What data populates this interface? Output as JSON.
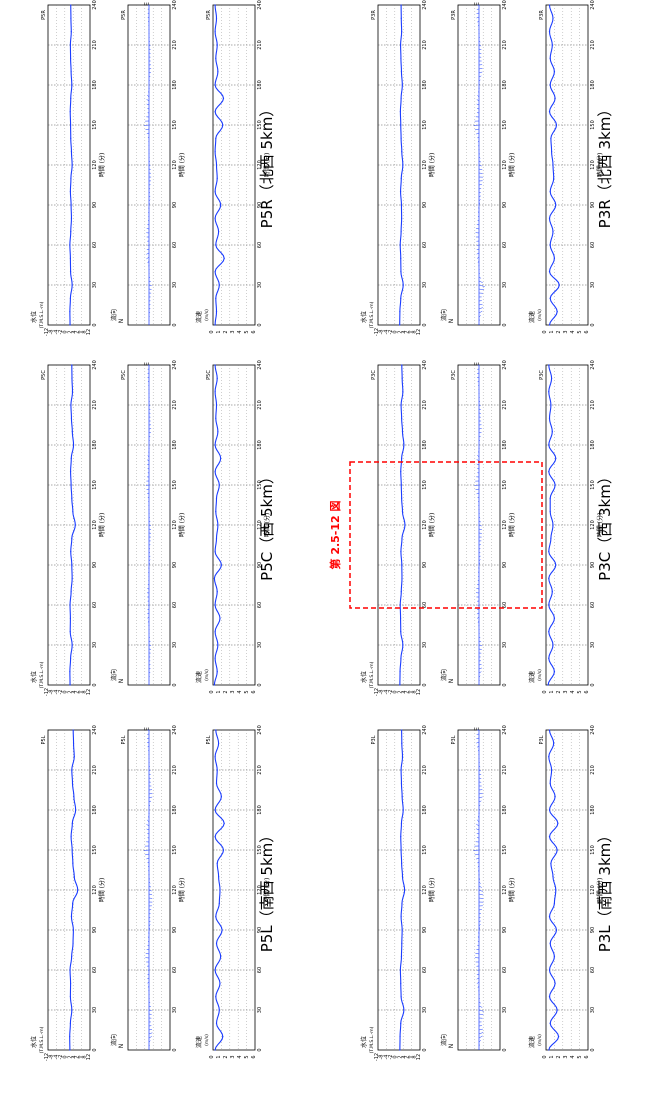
{
  "page": {
    "background": "#ffffff",
    "series_color": "#1a3cff",
    "highlight_color": "#ff0000"
  },
  "common": {
    "x_label": "時間 (分)",
    "x_ticks": [
      "0",
      "30",
      "60",
      "90",
      "120",
      "150",
      "180",
      "210",
      "240"
    ],
    "level_label": "水位",
    "level_unit": "(T.M.S.L.-m)",
    "level_ticks": [
      "12",
      "8",
      "6",
      "4",
      "2",
      "0",
      "-2",
      "-4",
      "-8",
      "-12"
    ],
    "vector_label": "流向",
    "vector_north": "N",
    "vector_east": "E",
    "speed_label": "流速",
    "speed_unit": "(m/s)",
    "speed_ticks": [
      "6",
      "5",
      "4",
      "3",
      "2",
      "1",
      "0"
    ]
  },
  "highlight": {
    "label": "第 2.5-12 図"
  },
  "groups": [
    {
      "key": "P5L",
      "title": "P5L（南西 5km）",
      "point": "P5L"
    },
    {
      "key": "P5C",
      "title": "P5C（西 5km）",
      "point": "P5C"
    },
    {
      "key": "P5R",
      "title": "P5R（北西 5km）",
      "point": "P5R"
    },
    {
      "key": "P3L",
      "title": "P3L（南西 3km）",
      "point": "P3L"
    },
    {
      "key": "P3C",
      "title": "P3C（西 3km）",
      "point": "P3C"
    },
    {
      "key": "P3R",
      "title": "P3R（北西 3km）",
      "point": "P3R"
    }
  ],
  "chart_data": [
    {
      "type": "line",
      "point": "P5L",
      "panel": "水位",
      "x_range": [
        0,
        240
      ],
      "ylim": [
        -12,
        12
      ],
      "series": [
        {
          "x": [
            0,
            10,
            20,
            30,
            40,
            50,
            60,
            70,
            80,
            90,
            100,
            110,
            120,
            130,
            140,
            150,
            160,
            170,
            180,
            190,
            200,
            210,
            220,
            230,
            240
          ],
          "values": [
            0.5,
            0.4,
            0.8,
            1.6,
            0.8,
            0.9,
            0.6,
            1.5,
            2.3,
            2.5,
            1.4,
            2.1,
            5.0,
            3.0,
            2.2,
            1.8,
            1.2,
            1.9,
            3.8,
            2.8,
            2.0,
            1.6,
            3.0,
            2.6,
            2.4
          ]
        }
      ]
    },
    {
      "type": "line",
      "point": "P5L",
      "panel": "流速",
      "x_range": [
        0,
        240
      ],
      "ylim": [
        0,
        6
      ],
      "series": [
        {
          "x": [
            0,
            10,
            20,
            30,
            40,
            50,
            60,
            70,
            80,
            90,
            100,
            110,
            120,
            130,
            140,
            150,
            160,
            170,
            180,
            190,
            200,
            210,
            220,
            230,
            240
          ],
          "values": [
            0.3,
            1.4,
            0.5,
            0.9,
            0.4,
            1.0,
            0.3,
            1.1,
            0.5,
            1.3,
            0.4,
            0.9,
            1.0,
            0.8,
            0.6,
            1.5,
            0.3,
            1.6,
            0.3,
            1.2,
            0.5,
            0.6,
            0.3,
            0.8,
            0.4
          ]
        }
      ]
    },
    {
      "type": "line",
      "point": "P5C",
      "panel": "水位",
      "x_range": [
        0,
        240
      ],
      "ylim": [
        -12,
        12
      ],
      "series": [
        {
          "x": [
            0,
            10,
            20,
            30,
            40,
            50,
            60,
            70,
            80,
            90,
            100,
            110,
            120,
            130,
            140,
            150,
            160,
            170,
            180,
            190,
            200,
            210,
            220,
            230,
            240
          ],
          "values": [
            0.6,
            0.5,
            0.9,
            1.8,
            0.7,
            0.8,
            0.6,
            1.2,
            1.8,
            1.6,
            1.0,
            1.6,
            3.6,
            2.2,
            1.6,
            1.2,
            0.9,
            1.3,
            2.6,
            1.9,
            1.4,
            1.1,
            2.0,
            1.7,
            1.6
          ]
        }
      ]
    },
    {
      "type": "line",
      "point": "P5C",
      "panel": "流速",
      "x_range": [
        0,
        240
      ],
      "ylim": [
        0,
        6
      ],
      "series": [
        {
          "x": [
            0,
            10,
            20,
            30,
            40,
            50,
            60,
            70,
            80,
            90,
            100,
            110,
            120,
            130,
            140,
            150,
            160,
            170,
            180,
            190,
            200,
            210,
            220,
            230,
            240
          ],
          "values": [
            0.2,
            0.6,
            0.3,
            0.7,
            0.3,
            1.0,
            0.3,
            0.6,
            0.2,
            1.2,
            0.3,
            0.5,
            0.7,
            0.4,
            0.5,
            0.9,
            0.3,
            1.1,
            0.3,
            0.7,
            0.4,
            0.5,
            0.3,
            0.6,
            0.3
          ]
        }
      ]
    },
    {
      "type": "line",
      "point": "P5R",
      "panel": "水位",
      "x_range": [
        0,
        240
      ],
      "ylim": [
        -12,
        12
      ],
      "series": [
        {
          "x": [
            0,
            10,
            20,
            30,
            40,
            50,
            60,
            70,
            80,
            90,
            100,
            110,
            120,
            130,
            140,
            150,
            160,
            170,
            180,
            190,
            200,
            210,
            220,
            230,
            240
          ],
          "values": [
            0.6,
            0.5,
            0.8,
            1.8,
            0.9,
            0.8,
            0.5,
            1.0,
            1.4,
            1.2,
            0.8,
            1.1,
            1.8,
            1.4,
            1.0,
            0.9,
            0.7,
            1.0,
            1.6,
            1.2,
            0.9,
            0.8,
            1.3,
            1.1,
            1.0
          ]
        }
      ]
    },
    {
      "type": "line",
      "point": "P5R",
      "panel": "流速",
      "x_range": [
        0,
        240
      ],
      "ylim": [
        0,
        6
      ],
      "series": [
        {
          "x": [
            0,
            10,
            20,
            30,
            40,
            50,
            60,
            70,
            80,
            90,
            100,
            110,
            120,
            130,
            140,
            150,
            160,
            170,
            180,
            190,
            200,
            210,
            220,
            230,
            240
          ],
          "values": [
            0.3,
            0.5,
            0.4,
            0.9,
            0.3,
            1.6,
            0.4,
            0.8,
            0.3,
            1.1,
            0.3,
            0.6,
            0.5,
            0.3,
            0.4,
            1.4,
            0.3,
            1.5,
            0.3,
            0.7,
            0.4,
            0.6,
            0.3,
            0.5,
            0.3
          ]
        }
      ]
    },
    {
      "type": "line",
      "point": "P3L",
      "panel": "水位",
      "x_range": [
        0,
        240
      ],
      "ylim": [
        -12,
        12
      ],
      "series": [
        {
          "x": [
            0,
            10,
            20,
            30,
            40,
            50,
            60,
            70,
            80,
            90,
            100,
            110,
            120,
            130,
            140,
            150,
            160,
            170,
            180,
            190,
            200,
            210,
            220,
            230,
            240
          ],
          "values": [
            0.5,
            0.6,
            1.0,
            2.8,
            1.2,
            1.0,
            0.8,
            1.4,
            1.6,
            1.8,
            1.2,
            1.7,
            3.2,
            2.0,
            1.5,
            1.2,
            1.0,
            1.4,
            2.4,
            1.8,
            1.4,
            1.2,
            2.0,
            1.6,
            1.5
          ]
        }
      ]
    },
    {
      "type": "line",
      "point": "P3L",
      "panel": "流速",
      "x_range": [
        0,
        240
      ],
      "ylim": [
        0,
        6
      ],
      "series": [
        {
          "x": [
            0,
            10,
            20,
            30,
            40,
            50,
            60,
            70,
            80,
            90,
            100,
            110,
            120,
            130,
            140,
            150,
            160,
            170,
            180,
            190,
            200,
            210,
            220,
            230,
            240
          ],
          "values": [
            0.4,
            1.8,
            0.6,
            1.6,
            0.5,
            1.3,
            0.5,
            1.2,
            0.6,
            1.5,
            0.5,
            1.2,
            1.4,
            1.0,
            0.7,
            1.6,
            0.5,
            1.7,
            0.5,
            1.3,
            0.6,
            0.8,
            0.4,
            1.1,
            0.5
          ]
        }
      ]
    },
    {
      "type": "line",
      "point": "P3C",
      "panel": "水位",
      "x_range": [
        0,
        240
      ],
      "ylim": [
        -12,
        12
      ],
      "series": [
        {
          "x": [
            0,
            10,
            20,
            30,
            40,
            50,
            60,
            70,
            80,
            90,
            100,
            110,
            120,
            130,
            140,
            150,
            160,
            170,
            180,
            190,
            200,
            210,
            220,
            230,
            240
          ],
          "values": [
            0.5,
            0.6,
            1.1,
            2.2,
            1.0,
            0.9,
            0.7,
            1.3,
            1.7,
            1.6,
            1.1,
            1.7,
            3.4,
            2.0,
            1.5,
            1.3,
            1.0,
            1.5,
            2.8,
            2.0,
            1.5,
            1.2,
            2.2,
            1.8,
            1.6
          ]
        }
      ]
    },
    {
      "type": "line",
      "point": "P3C",
      "panel": "流速",
      "x_range": [
        0,
        240
      ],
      "ylim": [
        0,
        6
      ],
      "series": [
        {
          "x": [
            0,
            10,
            20,
            30,
            40,
            50,
            60,
            70,
            80,
            90,
            100,
            110,
            120,
            130,
            140,
            150,
            160,
            170,
            180,
            190,
            200,
            210,
            220,
            230,
            240
          ],
          "values": [
            0.3,
            1.2,
            0.4,
            1.0,
            0.4,
            1.2,
            0.4,
            0.9,
            0.4,
            1.4,
            0.4,
            0.7,
            1.0,
            0.6,
            0.6,
            1.3,
            0.4,
            1.4,
            0.4,
            0.9,
            0.5,
            0.7,
            0.4,
            0.8,
            0.4
          ]
        }
      ]
    },
    {
      "type": "line",
      "point": "P3R",
      "panel": "水位",
      "x_range": [
        0,
        240
      ],
      "ylim": [
        -12,
        12
      ],
      "series": [
        {
          "x": [
            0,
            10,
            20,
            30,
            40,
            50,
            60,
            70,
            80,
            90,
            100,
            110,
            120,
            130,
            140,
            150,
            160,
            170,
            180,
            190,
            200,
            210,
            220,
            230,
            240
          ],
          "values": [
            0.4,
            0.5,
            1.0,
            2.4,
            1.1,
            1.0,
            0.7,
            1.2,
            1.5,
            1.4,
            0.9,
            1.3,
            2.2,
            1.6,
            1.2,
            1.0,
            0.8,
            1.2,
            1.9,
            1.4,
            1.1,
            0.9,
            1.5,
            1.3,
            1.2
          ]
        }
      ]
    },
    {
      "type": "line",
      "point": "P3R",
      "panel": "流速",
      "x_range": [
        0,
        240
      ],
      "ylim": [
        0,
        6
      ],
      "series": [
        {
          "x": [
            0,
            10,
            20,
            30,
            40,
            50,
            60,
            70,
            80,
            90,
            100,
            110,
            120,
            130,
            140,
            150,
            160,
            170,
            180,
            190,
            200,
            210,
            220,
            230,
            240
          ],
          "values": [
            0.5,
            1.6,
            0.6,
            1.9,
            0.5,
            1.2,
            0.6,
            1.0,
            0.5,
            1.4,
            0.6,
            1.1,
            1.0,
            0.8,
            0.7,
            1.5,
            0.5,
            1.3,
            0.6,
            1.2,
            0.6,
            0.9,
            0.5,
            1.0,
            0.5
          ]
        }
      ]
    }
  ]
}
